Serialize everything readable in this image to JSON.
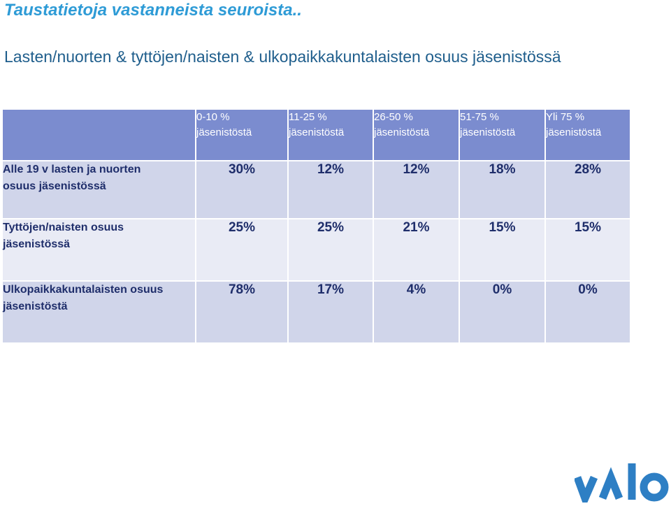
{
  "title": "Taustatietoja vastanneista seuroista..",
  "subtitle": "Lasten/nuorten & tyttöjen/naisten & ulkopaikkakuntalaisten osuus jäsenistössä",
  "table": {
    "columns": [
      {
        "line1": "0-10 %",
        "line2": "jäsenistöstä"
      },
      {
        "line1": "11-25 %",
        "line2": "jäsenistöstä"
      },
      {
        "line1": "26-50 %",
        "line2": "jäsenistöstä"
      },
      {
        "line1": "51-75 %",
        "line2": "jäsenistöstä"
      },
      {
        "line1": "Yli 75 %",
        "line2": "jäsenistöstä"
      }
    ],
    "rows": [
      {
        "line1": "Alle 19 v lasten ja nuorten",
        "line2": "osuus jäsenistössä",
        "values": [
          "30%",
          "12%",
          "12%",
          "18%",
          "28%"
        ]
      },
      {
        "line1": "Tyttöjen/naisten osuus",
        "line2": "jäsenistössä",
        "values": [
          "25%",
          "25%",
          "21%",
          "15%",
          "15%"
        ]
      },
      {
        "line1": "Ulkopaikkakuntalaisten osuus",
        "line2": "jäsenistöstä",
        "values": [
          "78%",
          "17%",
          "4%",
          "0%",
          "0%"
        ]
      }
    ]
  },
  "colors": {
    "title": "#2e9bd6",
    "subtitle": "#1f5e8c",
    "header_bg": "#7b8ccf",
    "row_dark": "#d0d5ea",
    "row_light": "#e9ebf5",
    "logo": "#2e7fc4"
  },
  "logo": {
    "icon": "valo-logo-icon",
    "text": "valo"
  }
}
